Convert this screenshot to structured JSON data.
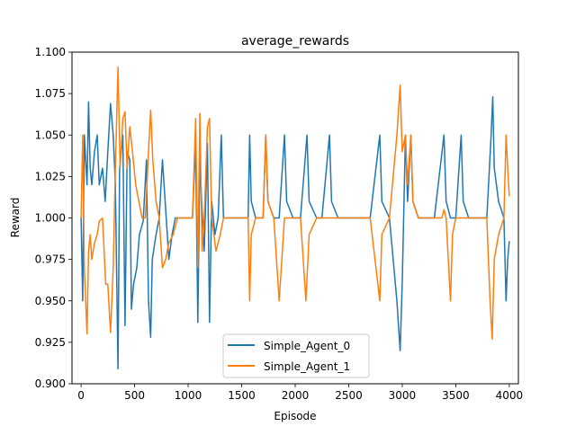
{
  "chart_data": {
    "type": "line",
    "title": "average_rewards",
    "xlabel": "Episode",
    "ylabel": "Reward",
    "xlim": [
      -85,
      4085
    ],
    "ylim": [
      0.9,
      1.1
    ],
    "x_ticks": [
      0,
      500,
      1000,
      1500,
      2000,
      2500,
      3000,
      3500,
      4000
    ],
    "x_tick_labels": [
      "0",
      "500",
      "1000",
      "1500",
      "2000",
      "2500",
      "3000",
      "3500",
      "4000"
    ],
    "y_ticks": [
      0.9,
      0.925,
      0.95,
      0.975,
      1.0,
      1.025,
      1.05,
      1.075,
      1.1
    ],
    "y_tick_labels": [
      "0.900",
      "0.925",
      "0.950",
      "0.975",
      "1.000",
      "1.025",
      "1.050",
      "1.075",
      "1.100"
    ],
    "grid": false,
    "legend_position": "lower center",
    "series": [
      {
        "name": "Simple_Agent_0",
        "color": "#1f77b4",
        "points": [
          [
            0,
            1.0
          ],
          [
            15,
            0.95
          ],
          [
            30,
            1.05
          ],
          [
            55,
            1.02
          ],
          [
            70,
            1.07
          ],
          [
            85,
            1.03
          ],
          [
            100,
            1.02
          ],
          [
            125,
            1.04
          ],
          [
            150,
            1.05
          ],
          [
            170,
            1.02
          ],
          [
            200,
            1.03
          ],
          [
            225,
            1.01
          ],
          [
            250,
            1.04
          ],
          [
            275,
            1.069
          ],
          [
            300,
            1.05
          ],
          [
            320,
            1.02
          ],
          [
            345,
            0.909
          ],
          [
            360,
            1.03
          ],
          [
            390,
            1.05
          ],
          [
            410,
            0.935
          ],
          [
            430,
            1.04
          ],
          [
            455,
            1.035
          ],
          [
            470,
            0.945
          ],
          [
            490,
            0.96
          ],
          [
            520,
            0.97
          ],
          [
            545,
            0.99
          ],
          [
            580,
            0.998
          ],
          [
            610,
            1.035
          ],
          [
            630,
            0.95
          ],
          [
            650,
            0.928
          ],
          [
            665,
            0.975
          ],
          [
            700,
            0.99
          ],
          [
            730,
            1.0
          ],
          [
            760,
            1.035
          ],
          [
            800,
            0.995
          ],
          [
            820,
            0.975
          ],
          [
            850,
            0.99
          ],
          [
            880,
            1.0
          ],
          [
            920,
            1.0
          ],
          [
            960,
            1.0
          ],
          [
            1000,
            1.0
          ],
          [
            1040,
            1.0
          ],
          [
            1070,
            1.045
          ],
          [
            1090,
            0.937
          ],
          [
            1110,
            1.035
          ],
          [
            1130,
            1.005
          ],
          [
            1150,
            0.98
          ],
          [
            1180,
            1.045
          ],
          [
            1200,
            0.937
          ],
          [
            1220,
            1.01
          ],
          [
            1250,
            0.99
          ],
          [
            1280,
            1.0
          ],
          [
            1310,
            1.05
          ],
          [
            1330,
            1.0
          ],
          [
            1360,
            1.0
          ],
          [
            1400,
            1.0
          ],
          [
            1450,
            1.0
          ],
          [
            1500,
            1.0
          ],
          [
            1560,
            1.0
          ],
          [
            1575,
            1.05
          ],
          [
            1590,
            1.01
          ],
          [
            1630,
            1.0
          ],
          [
            1700,
            1.0
          ],
          [
            1725,
            1.05
          ],
          [
            1745,
            1.01
          ],
          [
            1800,
            1.0
          ],
          [
            1850,
            1.0
          ],
          [
            1900,
            1.05
          ],
          [
            1920,
            1.01
          ],
          [
            1980,
            1.0
          ],
          [
            2050,
            1.0
          ],
          [
            2110,
            1.05
          ],
          [
            2130,
            1.01
          ],
          [
            2200,
            1.0
          ],
          [
            2250,
            1.0
          ],
          [
            2320,
            1.05
          ],
          [
            2340,
            1.01
          ],
          [
            2400,
            1.0
          ],
          [
            2500,
            1.0
          ],
          [
            2600,
            1.0
          ],
          [
            2700,
            1.0
          ],
          [
            2790,
            1.05
          ],
          [
            2810,
            1.01
          ],
          [
            2880,
            1.0
          ],
          [
            2950,
            0.95
          ],
          [
            2980,
            0.92
          ],
          [
            3000,
            0.96
          ],
          [
            3030,
            1.05
          ],
          [
            3050,
            1.01
          ],
          [
            3080,
            1.05
          ],
          [
            3100,
            1.01
          ],
          [
            3150,
            1.0
          ],
          [
            3200,
            1.0
          ],
          [
            3250,
            1.0
          ],
          [
            3300,
            1.0
          ],
          [
            3390,
            1.05
          ],
          [
            3410,
            1.01
          ],
          [
            3450,
            1.0
          ],
          [
            3500,
            1.0
          ],
          [
            3550,
            1.05
          ],
          [
            3570,
            1.01
          ],
          [
            3620,
            1.0
          ],
          [
            3700,
            1.0
          ],
          [
            3790,
            1.0
          ],
          [
            3830,
            1.05
          ],
          [
            3845,
            1.073
          ],
          [
            3860,
            1.03
          ],
          [
            3900,
            1.01
          ],
          [
            3950,
            1.0
          ],
          [
            3970,
            0.95
          ],
          [
            3985,
            0.975
          ],
          [
            4000,
            0.986
          ]
        ]
      },
      {
        "name": "Simple_Agent_1",
        "color": "#ff7f0e",
        "points": [
          [
            0,
            1.0
          ],
          [
            15,
            1.05
          ],
          [
            30,
            0.97
          ],
          [
            55,
            0.93
          ],
          [
            70,
            0.98
          ],
          [
            85,
            0.99
          ],
          [
            100,
            0.975
          ],
          [
            125,
            0.985
          ],
          [
            150,
            0.99
          ],
          [
            170,
            0.998
          ],
          [
            200,
            1.0
          ],
          [
            230,
            0.96
          ],
          [
            250,
            0.96
          ],
          [
            275,
            0.931
          ],
          [
            300,
            0.97
          ],
          [
            320,
            1.03
          ],
          [
            345,
            1.091
          ],
          [
            365,
            1.03
          ],
          [
            390,
            1.06
          ],
          [
            410,
            1.064
          ],
          [
            430,
            1.03
          ],
          [
            455,
            1.055
          ],
          [
            480,
            1.04
          ],
          [
            510,
            1.02
          ],
          [
            540,
            1.01
          ],
          [
            570,
            1.0
          ],
          [
            600,
            1.0
          ],
          [
            630,
            1.04
          ],
          [
            650,
            1.065
          ],
          [
            670,
            1.035
          ],
          [
            700,
            1.01
          ],
          [
            730,
            1.0
          ],
          [
            760,
            0.97
          ],
          [
            790,
            0.975
          ],
          [
            820,
            0.985
          ],
          [
            860,
            0.99
          ],
          [
            900,
            1.0
          ],
          [
            960,
            1.0
          ],
          [
            1000,
            1.0
          ],
          [
            1040,
            1.0
          ],
          [
            1070,
            1.06
          ],
          [
            1090,
            0.97
          ],
          [
            1110,
            1.063
          ],
          [
            1130,
            0.98
          ],
          [
            1150,
            1.0
          ],
          [
            1180,
            1.055
          ],
          [
            1200,
            1.06
          ],
          [
            1220,
            1.0
          ],
          [
            1260,
            0.98
          ],
          [
            1300,
            0.99
          ],
          [
            1330,
            1.0
          ],
          [
            1380,
            1.0
          ],
          [
            1450,
            1.0
          ],
          [
            1520,
            1.0
          ],
          [
            1560,
            1.0
          ],
          [
            1575,
            0.95
          ],
          [
            1590,
            0.99
          ],
          [
            1630,
            1.0
          ],
          [
            1700,
            1.0
          ],
          [
            1725,
            1.05
          ],
          [
            1745,
            1.01
          ],
          [
            1800,
            1.0
          ],
          [
            1850,
            0.95
          ],
          [
            1900,
            1.0
          ],
          [
            1950,
            1.0
          ],
          [
            2000,
            1.0
          ],
          [
            2050,
            1.0
          ],
          [
            2100,
            0.95
          ],
          [
            2130,
            0.99
          ],
          [
            2200,
            1.0
          ],
          [
            2300,
            1.0
          ],
          [
            2400,
            1.0
          ],
          [
            2500,
            1.0
          ],
          [
            2600,
            1.0
          ],
          [
            2700,
            1.0
          ],
          [
            2790,
            0.95
          ],
          [
            2810,
            0.99
          ],
          [
            2880,
            1.0
          ],
          [
            2950,
            1.05
          ],
          [
            2980,
            1.08
          ],
          [
            3000,
            1.04
          ],
          [
            3030,
            1.05
          ],
          [
            3050,
            1.02
          ],
          [
            3080,
            1.05
          ],
          [
            3100,
            1.01
          ],
          [
            3150,
            1.0
          ],
          [
            3250,
            1.0
          ],
          [
            3300,
            1.0
          ],
          [
            3370,
            1.0
          ],
          [
            3390,
            1.005
          ],
          [
            3410,
            1.0
          ],
          [
            3450,
            0.95
          ],
          [
            3470,
            0.99
          ],
          [
            3500,
            1.0
          ],
          [
            3550,
            1.0
          ],
          [
            3620,
            1.0
          ],
          [
            3700,
            1.0
          ],
          [
            3790,
            1.0
          ],
          [
            3820,
            0.95
          ],
          [
            3840,
            0.927
          ],
          [
            3860,
            0.975
          ],
          [
            3900,
            0.99
          ],
          [
            3950,
            1.0
          ],
          [
            3970,
            1.05
          ],
          [
            3985,
            1.03
          ],
          [
            4000,
            1.013
          ]
        ]
      }
    ]
  }
}
